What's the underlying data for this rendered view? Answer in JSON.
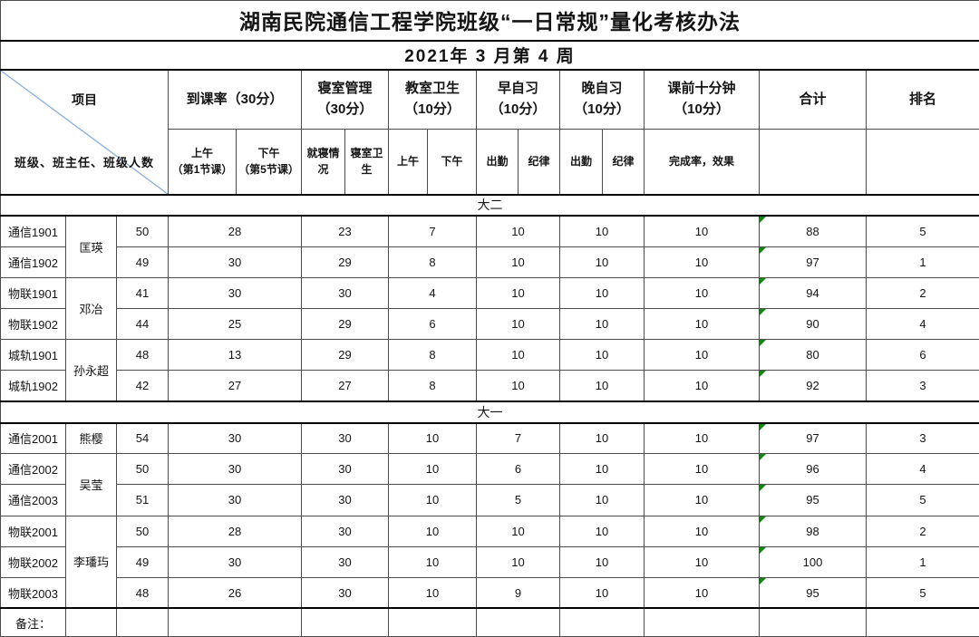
{
  "title": "湖南民院通信工程学院班级“一日常规”量化考核办法",
  "subtitle": "2021年 3 月第 4 周",
  "corner": {
    "top": "项目",
    "bottom": "班级、班主任、班级人数"
  },
  "header": {
    "groups": [
      {
        "label": "到课率（30分）"
      },
      {
        "label": "寝室管理\n（30分）"
      },
      {
        "label": "教室卫生\n（10分）"
      },
      {
        "label": "早自习\n（10分）"
      },
      {
        "label": "晚自习\n（10分）"
      },
      {
        "label": "课前十分钟\n（10分）"
      },
      {
        "label": "合计"
      },
      {
        "label": "排名"
      }
    ],
    "subs": [
      "上午\n（第1节课）",
      "下午\n（第5节课）",
      "就寝情况",
      "寝室卫生",
      "上午",
      "下午",
      "出勤",
      "纪律",
      "出勤",
      "纪律",
      "完成率，效果",
      "",
      ""
    ]
  },
  "sections": [
    {
      "label": "大二",
      "rows": [
        {
          "cls": "通信1901",
          "teacher": "匡瑛",
          "tspan": 2,
          "size": "50",
          "vals": [
            "28",
            "23",
            "7",
            "10",
            "10",
            "10"
          ],
          "total": "88",
          "rank": "5"
        },
        {
          "cls": "通信1902",
          "size": "49",
          "vals": [
            "30",
            "29",
            "8",
            "10",
            "10",
            "10"
          ],
          "total": "97",
          "rank": "1"
        },
        {
          "cls": "物联1901",
          "teacher": "邓冶",
          "tspan": 2,
          "size": "41",
          "vals": [
            "30",
            "30",
            "4",
            "10",
            "10",
            "10"
          ],
          "total": "94",
          "rank": "2"
        },
        {
          "cls": "物联1902",
          "size": "44",
          "vals": [
            "25",
            "29",
            "6",
            "10",
            "10",
            "10"
          ],
          "total": "90",
          "rank": "4"
        },
        {
          "cls": "城轨1901",
          "teacher": "孙永超",
          "tspan": 2,
          "size": "48",
          "vals": [
            "13",
            "29",
            "8",
            "10",
            "10",
            "10"
          ],
          "total": "80",
          "rank": "6"
        },
        {
          "cls": "城轨1902",
          "size": "42",
          "vals": [
            "27",
            "27",
            "8",
            "10",
            "10",
            "10"
          ],
          "total": "92",
          "rank": "3"
        }
      ]
    },
    {
      "label": "大一",
      "rows": [
        {
          "cls": "通信2001",
          "teacher": "熊樱",
          "tspan": 1,
          "size": "54",
          "vals": [
            "30",
            "30",
            "10",
            "7",
            "10",
            "10"
          ],
          "total": "97",
          "rank": "3"
        },
        {
          "cls": "通信2002",
          "teacher": "吴莹",
          "tspan": 2,
          "size": "50",
          "vals": [
            "30",
            "30",
            "10",
            "6",
            "10",
            "10"
          ],
          "total": "96",
          "rank": "4"
        },
        {
          "cls": "通信2003",
          "size": "51",
          "vals": [
            "30",
            "30",
            "10",
            "5",
            "10",
            "10"
          ],
          "total": "95",
          "rank": "5"
        },
        {
          "cls": "物联2001",
          "teacher": "李璠玙",
          "tspan": 3,
          "size": "50",
          "vals": [
            "28",
            "30",
            "10",
            "10",
            "10",
            "10"
          ],
          "total": "98",
          "rank": "2"
        },
        {
          "cls": "物联2002",
          "size": "49",
          "vals": [
            "30",
            "30",
            "10",
            "10",
            "10",
            "10"
          ],
          "total": "100",
          "rank": "1"
        },
        {
          "cls": "物联2003",
          "size": "48",
          "vals": [
            "26",
            "30",
            "10",
            "9",
            "10",
            "10"
          ],
          "total": "95",
          "rank": "5"
        }
      ]
    }
  ],
  "footer": {
    "label": "备注："
  },
  "colors": {
    "diagonal_line": "#87aedb",
    "green_triangle": "#128712",
    "grid_line": "#4d4d4d",
    "frame": "#000000"
  }
}
